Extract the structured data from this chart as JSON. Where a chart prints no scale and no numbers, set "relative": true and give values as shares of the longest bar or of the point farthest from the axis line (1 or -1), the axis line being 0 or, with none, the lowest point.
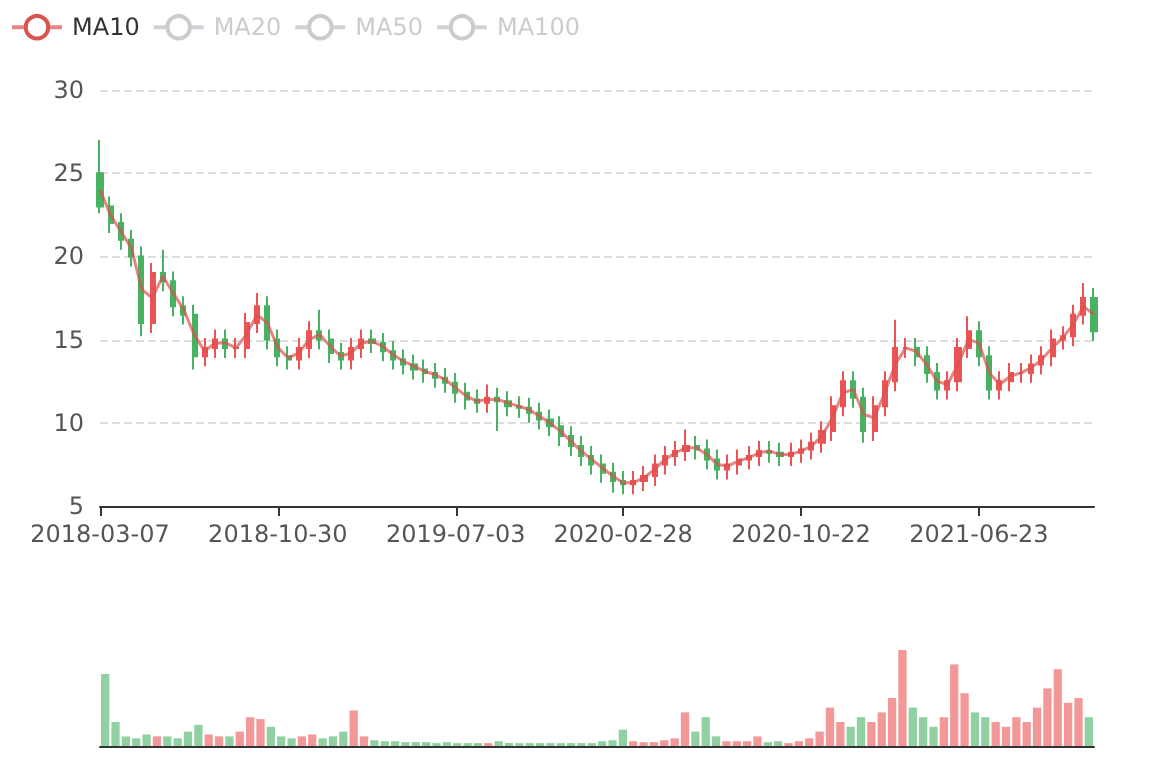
{
  "chart_data": [
    {
      "type": "candlestick",
      "legend": "top left",
      "grid": "y",
      "ylim": [
        5,
        30
      ],
      "yticks": [
        5,
        10,
        15,
        20,
        25,
        30
      ],
      "categories": [
        "2018-03-07",
        null,
        null,
        null,
        null,
        null,
        null,
        null,
        null,
        null,
        null,
        null,
        null,
        null,
        null,
        null,
        null,
        "2018-10-30",
        null,
        null,
        null,
        null,
        null,
        null,
        null,
        null,
        null,
        null,
        null,
        null,
        null,
        null,
        null,
        null,
        "2019-07-03",
        null,
        null,
        null,
        null,
        null,
        null,
        null,
        null,
        null,
        null,
        null,
        null,
        null,
        null,
        null,
        "2020-02-28",
        null,
        null,
        null,
        null,
        null,
        null,
        null,
        null,
        null,
        null,
        null,
        null,
        null,
        null,
        null,
        null,
        "2020-10-22",
        null,
        null,
        null,
        null,
        null,
        null,
        null,
        null,
        null,
        null,
        null,
        null,
        null,
        null,
        null,
        null,
        "2021-06-23",
        null,
        null,
        null,
        null,
        null,
        null,
        null,
        null,
        null,
        null,
        null
      ],
      "ohlc": [
        [
          25,
          27,
          22.6,
          23
        ],
        [
          23,
          23.6,
          21.4,
          22
        ],
        [
          22,
          22.6,
          20.4,
          21
        ],
        [
          21,
          21.6,
          19.4,
          20
        ],
        [
          20,
          20.6,
          15.2,
          16
        ],
        [
          16,
          19.6,
          15.4,
          19
        ],
        [
          19,
          20.4,
          17.9,
          18.5
        ],
        [
          18.5,
          19.1,
          16.4,
          17
        ],
        [
          17,
          17.6,
          15.9,
          16.5
        ],
        [
          16.5,
          17.1,
          13.2,
          14
        ],
        [
          14,
          15.1,
          13.4,
          14.5
        ],
        [
          14.5,
          15.6,
          13.9,
          15
        ],
        [
          15,
          15.6,
          13.9,
          14.5
        ],
        [
          14.5,
          15.1,
          13.9,
          14.5
        ],
        [
          14.5,
          16.6,
          13.9,
          16
        ],
        [
          16,
          17.8,
          15.4,
          17
        ],
        [
          17,
          17.6,
          14.4,
          15
        ],
        [
          15,
          15.6,
          13.4,
          14
        ],
        [
          14,
          14.6,
          13.2,
          13.8
        ],
        [
          13.8,
          15.1,
          13.2,
          14.5
        ],
        [
          14.5,
          16.1,
          13.9,
          15.5
        ],
        [
          15.5,
          16.8,
          14.4,
          15
        ],
        [
          15,
          15.6,
          13.6,
          14.2
        ],
        [
          14.2,
          14.8,
          13.2,
          13.8
        ],
        [
          13.8,
          15.1,
          13.2,
          14.5
        ],
        [
          14.5,
          15.6,
          13.9,
          15
        ],
        [
          15,
          15.6,
          14.2,
          14.8
        ],
        [
          14.8,
          15.4,
          13.7,
          14.3
        ],
        [
          14.3,
          14.9,
          13.2,
          13.8
        ],
        [
          13.8,
          14.4,
          12.9,
          13.5
        ],
        [
          13.5,
          14.1,
          12.6,
          13.2
        ],
        [
          13.2,
          13.8,
          12.4,
          13
        ],
        [
          13,
          13.6,
          12.1,
          12.7
        ],
        [
          12.7,
          13.3,
          11.8,
          12.4
        ],
        [
          12.4,
          13,
          11.2,
          11.8
        ],
        [
          11.8,
          12.4,
          10.8,
          11.4
        ],
        [
          11.4,
          12,
          10.6,
          11.2
        ],
        [
          11.2,
          12.3,
          10.6,
          11.5
        ],
        [
          11.5,
          12.1,
          9.5,
          11.3
        ],
        [
          11.3,
          11.9,
          10.4,
          11
        ],
        [
          11,
          11.6,
          10.3,
          10.9
        ],
        [
          10.9,
          11.5,
          10,
          10.6
        ],
        [
          10.6,
          11.2,
          9.6,
          10.2
        ],
        [
          10.2,
          10.8,
          9.2,
          9.8
        ],
        [
          9.8,
          10.4,
          8.6,
          9.2
        ],
        [
          9.2,
          9.8,
          8,
          8.6
        ],
        [
          8.6,
          9.2,
          7.4,
          8
        ],
        [
          8,
          8.6,
          6.9,
          7.5
        ],
        [
          7.5,
          8.1,
          6.4,
          7
        ],
        [
          7,
          7.6,
          5.8,
          6.5
        ],
        [
          6.5,
          7.1,
          5.7,
          6.3
        ],
        [
          6.3,
          7.1,
          5.7,
          6.5
        ],
        [
          6.5,
          7.4,
          5.9,
          6.8
        ],
        [
          6.8,
          8.1,
          6.2,
          7.5
        ],
        [
          7.5,
          8.6,
          6.9,
          8
        ],
        [
          8,
          8.9,
          7.4,
          8.3
        ],
        [
          8.3,
          9.6,
          7.7,
          8.6
        ],
        [
          8.6,
          9.2,
          7.8,
          8.4
        ],
        [
          8.4,
          9,
          7.2,
          7.8
        ],
        [
          7.8,
          8.4,
          6.6,
          7.2
        ],
        [
          7.2,
          8.1,
          6.6,
          7.5
        ],
        [
          7.5,
          8.4,
          6.9,
          7.8
        ],
        [
          7.8,
          8.6,
          7.2,
          8
        ],
        [
          8,
          8.9,
          7.4,
          8.3
        ],
        [
          8.3,
          8.9,
          7.6,
          8.2
        ],
        [
          8.2,
          8.8,
          7.4,
          8
        ],
        [
          8,
          8.8,
          7.4,
          8.2
        ],
        [
          8.2,
          9,
          7.6,
          8.4
        ],
        [
          8.4,
          9.4,
          7.8,
          8.8
        ],
        [
          8.8,
          10.1,
          8.2,
          9.5
        ],
        [
          9.5,
          11.6,
          8.9,
          11
        ],
        [
          11,
          13.1,
          10.4,
          12.5
        ],
        [
          12.5,
          13.1,
          10.9,
          11.5
        ],
        [
          11.5,
          12.1,
          8.8,
          9.5
        ],
        [
          9.5,
          11.6,
          8.9,
          11
        ],
        [
          11,
          13.1,
          10.4,
          12.5
        ],
        [
          12.5,
          16.2,
          11.9,
          14.5
        ],
        [
          14.5,
          15.1,
          13.9,
          14.5
        ],
        [
          14.5,
          15.1,
          13.4,
          14
        ],
        [
          14,
          14.6,
          12.4,
          13
        ],
        [
          13,
          13.6,
          11.4,
          12
        ],
        [
          12,
          13.1,
          11.4,
          12.5
        ],
        [
          12.5,
          15.1,
          11.9,
          14.5
        ],
        [
          14.5,
          16.4,
          13.9,
          15.5
        ],
        [
          15.5,
          16.1,
          13.4,
          14
        ],
        [
          14,
          14.6,
          11.4,
          12
        ],
        [
          12,
          13.1,
          11.4,
          12.5
        ],
        [
          12.5,
          13.6,
          11.9,
          13
        ],
        [
          13,
          13.6,
          12.4,
          13
        ],
        [
          13,
          14.1,
          12.4,
          13.5
        ],
        [
          13.5,
          14.6,
          12.9,
          14
        ],
        [
          14,
          15.6,
          13.4,
          15
        ],
        [
          15,
          15.8,
          14.4,
          15.2
        ],
        [
          15.2,
          17.1,
          14.6,
          16.5
        ],
        [
          16.5,
          18.4,
          15.9,
          17.5
        ],
        [
          17.5,
          18.1,
          14.9,
          15.5
        ]
      ],
      "series": [
        {
          "type": "line",
          "name": "MA10",
          "color": "#d9534f",
          "values": [
            24,
            22.5,
            21.5,
            20.5,
            18,
            17.5,
            18.8,
            17.8,
            16.8,
            15.3,
            14.3,
            14.8,
            14.8,
            14.5,
            15.3,
            16.5,
            16,
            14.5,
            13.9,
            14.2,
            15,
            15.3,
            14.6,
            14,
            14.2,
            14.8,
            14.9,
            14.6,
            14.1,
            13.7,
            13.4,
            13.1,
            12.9,
            12.6,
            12.1,
            11.6,
            11.3,
            11.4,
            11.4,
            11.2,
            11,
            10.8,
            10.4,
            10,
            9.5,
            8.9,
            8.3,
            7.8,
            7.3,
            6.8,
            6.4,
            6.4,
            6.7,
            7.2,
            7.8,
            8.2,
            8.5,
            8.5,
            8.1,
            7.5,
            7.4,
            7.7,
            7.9,
            8.2,
            8.3,
            8.1,
            8.1,
            8.3,
            8.6,
            9.2,
            10.3,
            11.8,
            12,
            10.5,
            10.3,
            11.8,
            13.5,
            14.5,
            14.3,
            13.5,
            12.5,
            12.3,
            13.5,
            15,
            14.8,
            13,
            12.3,
            12.8,
            13,
            13.3,
            13.8,
            14.5,
            15.1,
            15.9,
            17,
            16.5
          ]
        },
        {
          "type": "line",
          "name": "MA20",
          "values": [
            null,
            null,
            null,
            null,
            null,
            null,
            null,
            null,
            null,
            null,
            null,
            null,
            null,
            null,
            null,
            null,
            null,
            null,
            null,
            null,
            null,
            null,
            null,
            null,
            null,
            null,
            null,
            null,
            null,
            null,
            null,
            null,
            null,
            null,
            null,
            null,
            null,
            null,
            null,
            null,
            null,
            null,
            null,
            null,
            null,
            null,
            null,
            null,
            null,
            null,
            null,
            null,
            null,
            null,
            null,
            null,
            null,
            null,
            null,
            null,
            null,
            null,
            null,
            null,
            null,
            null,
            null,
            null,
            null,
            null,
            null,
            null,
            null,
            null,
            null,
            null,
            null,
            null,
            null,
            null,
            null,
            null,
            null,
            null,
            null,
            null,
            null,
            null,
            null,
            null,
            null,
            null,
            null,
            null,
            null,
            null
          ]
        },
        {
          "type": "line",
          "name": "MA50",
          "values": [
            null,
            null,
            null,
            null,
            null,
            null,
            null,
            null,
            null,
            null,
            null,
            null,
            null,
            null,
            null,
            null,
            null,
            null,
            null,
            null,
            null,
            null,
            null,
            null,
            null,
            null,
            null,
            null,
            null,
            null,
            null,
            null,
            null,
            null,
            null,
            null,
            null,
            null,
            null,
            null,
            null,
            null,
            null,
            null,
            null,
            null,
            null,
            null,
            null,
            null,
            null,
            null,
            null,
            null,
            null,
            null,
            null,
            null,
            null,
            null,
            null,
            null,
            null,
            null,
            null,
            null,
            null,
            null,
            null,
            null,
            null,
            null,
            null,
            null,
            null,
            null,
            null,
            null,
            null,
            null,
            null,
            null,
            null,
            null,
            null,
            null,
            null,
            null,
            null,
            null,
            null,
            null,
            null,
            null,
            null,
            null
          ]
        },
        {
          "type": "line",
          "name": "MA100",
          "values": [
            null,
            null,
            null,
            null,
            null,
            null,
            null,
            null,
            null,
            null,
            null,
            null,
            null,
            null,
            null,
            null,
            null,
            null,
            null,
            null,
            null,
            null,
            null,
            null,
            null,
            null,
            null,
            null,
            null,
            null,
            null,
            null,
            null,
            null,
            null,
            null,
            null,
            null,
            null,
            null,
            null,
            null,
            null,
            null,
            null,
            null,
            null,
            null,
            null,
            null,
            null,
            null,
            null,
            null,
            null,
            null,
            null,
            null,
            null,
            null,
            null,
            null,
            null,
            null,
            null,
            null,
            null,
            null,
            null,
            null,
            null,
            null,
            null,
            null,
            null,
            null,
            null,
            null,
            null,
            null,
            null,
            null,
            null,
            null,
            null,
            null,
            null,
            null,
            null,
            null,
            null,
            null,
            null,
            null,
            null,
            null
          ]
        }
      ]
    },
    {
      "type": "bar",
      "relative": true,
      "categories": [
        null,
        null,
        null,
        null,
        null,
        null,
        null,
        null,
        null,
        null,
        null,
        null,
        null,
        null,
        null,
        null,
        null,
        null,
        null,
        null,
        null,
        null,
        null,
        null,
        null,
        null,
        null,
        null,
        null,
        null,
        null,
        null,
        null,
        null,
        null,
        null,
        null,
        null,
        null,
        null,
        null,
        null,
        null,
        null,
        null,
        null,
        null,
        null,
        null,
        null,
        null,
        null,
        null,
        null,
        null,
        null,
        null,
        null,
        null,
        null,
        null,
        null,
        null,
        null,
        null,
        null,
        null,
        null,
        null,
        null,
        null,
        null,
        null,
        null,
        null,
        null,
        null,
        null,
        null,
        null,
        null,
        null,
        null,
        null,
        null,
        null,
        null,
        null,
        null,
        null,
        null,
        null,
        null,
        null,
        null,
        null
      ],
      "values": [
        0.75,
        0.25,
        0.1,
        0.08,
        0.12,
        0.1,
        0.1,
        0.08,
        0.15,
        0.22,
        0.12,
        0.1,
        0.1,
        0.15,
        0.3,
        0.28,
        0.2,
        0.1,
        0.08,
        0.1,
        0.12,
        0.08,
        0.1,
        0.15,
        0.37,
        0.1,
        0.06,
        0.05,
        0.05,
        0.04,
        0.04,
        0.04,
        0.03,
        0.04,
        0.03,
        0.03,
        0.03,
        0.03,
        0.05,
        0.03,
        0.03,
        0.03,
        0.03,
        0.03,
        0.03,
        0.03,
        0.03,
        0.03,
        0.05,
        0.06,
        0.17,
        0.05,
        0.04,
        0.04,
        0.06,
        0.08,
        0.35,
        0.15,
        0.3,
        0.1,
        0.05,
        0.05,
        0.05,
        0.1,
        0.04,
        0.05,
        0.03,
        0.05,
        0.08,
        0.15,
        0.4,
        0.25,
        0.2,
        0.3,
        0.25,
        0.35,
        0.5,
        1,
        0.4,
        0.3,
        0.2,
        0.3,
        0.85,
        0.55,
        0.35,
        0.3,
        0.25,
        0.2,
        0.3,
        0.25,
        0.4,
        0.6,
        0.8,
        0.45,
        0.5,
        0.3
      ],
      "colors": [
        "#47b262",
        "#47b262",
        "#47b262",
        "#47b262",
        "#47b262",
        "#eb5454",
        "#47b262",
        "#47b262",
        "#47b262",
        "#47b262",
        "#eb5454",
        "#eb5454",
        "#47b262",
        "#eb5454",
        "#eb5454",
        "#eb5454",
        "#47b262",
        "#47b262",
        "#47b262",
        "#eb5454",
        "#eb5454",
        "#47b262",
        "#47b262",
        "#47b262",
        "#eb5454",
        "#eb5454",
        "#47b262",
        "#47b262",
        "#47b262",
        "#47b262",
        "#47b262",
        "#47b262",
        "#47b262",
        "#47b262",
        "#47b262",
        "#47b262",
        "#47b262",
        "#eb5454",
        "#47b262",
        "#47b262",
        "#47b262",
        "#47b262",
        "#47b262",
        "#47b262",
        "#47b262",
        "#47b262",
        "#47b262",
        "#47b262",
        "#47b262",
        "#47b262",
        "#47b262",
        "#eb5454",
        "#eb5454",
        "#eb5454",
        "#eb5454",
        "#eb5454",
        "#eb5454",
        "#47b262",
        "#47b262",
        "#47b262",
        "#eb5454",
        "#eb5454",
        "#eb5454",
        "#eb5454",
        "#47b262",
        "#47b262",
        "#eb5454",
        "#eb5454",
        "#eb5454",
        "#eb5454",
        "#eb5454",
        "#eb5454",
        "#47b262",
        "#47b262",
        "#eb5454",
        "#eb5454",
        "#eb5454",
        "#eb5454",
        "#47b262",
        "#47b262",
        "#47b262",
        "#eb5454",
        "#eb5454",
        "#eb5454",
        "#47b262",
        "#47b262",
        "#eb5454",
        "#eb5454",
        "#eb5454",
        "#eb5454",
        "#eb5454",
        "#eb5454",
        "#eb5454",
        "#eb5454",
        "#eb5454",
        "#47b262"
      ]
    }
  ]
}
